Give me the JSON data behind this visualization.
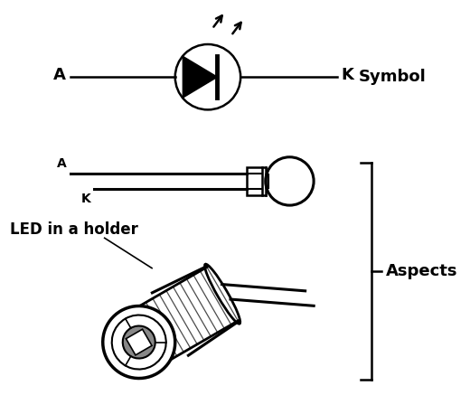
{
  "background_color": "#ffffff",
  "line_color": "#000000",
  "symbol_label": "Symbol",
  "aspects_label": "Aspects",
  "anode_label": "A",
  "cathode_label": "K",
  "led_holder_label": "LED in a holder",
  "figsize": [
    5.2,
    4.58
  ],
  "dpi": 100
}
